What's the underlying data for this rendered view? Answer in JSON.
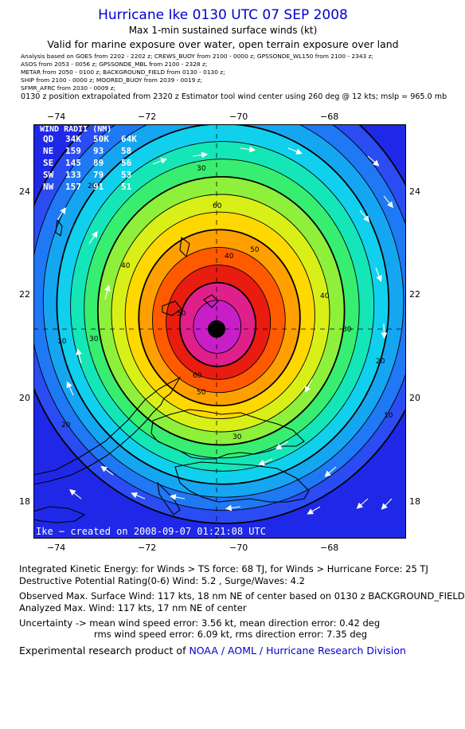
{
  "header": {
    "title": "Hurricane Ike 0130 UTC 07 SEP 2008",
    "subtitle1": "Max 1-min sustained surface winds (kt)",
    "subtitle2": "Valid for marine exposure over water, open terrain exposure over land"
  },
  "sources": [
    "Analysis based on  GOES from  2202 - 2202 z;  CREWS_BUOY from  2100 - 0000 z;  GPSSONDE_WL150 from  2100 - 2343 z;",
    "ASOS from  2053 - 0056 z;  GPSSONDE_MBL from  2100 - 2328 z;",
    "METAR from  2050 - 0100 z;  BACKGROUND_FIELD from  0130 - 0130 z;",
    "SHIP from  2100 - 0000 z;  MOORED_BUOY from  2039 - 0019 z;",
    "SFMR_AFRC from  2030 - 0009 z;"
  ],
  "position_note": "0130 z position extrapolated from 2320 z Estimator tool wind center using 260 deg @ 12 kts; mslp = 965.0 mb",
  "map": {
    "lon_ticks": [
      "−74",
      "−72",
      "−70",
      "−68"
    ],
    "lat_ticks": [
      "24",
      "22",
      "20",
      "18"
    ],
    "wind_radii": {
      "title": "WIND RADII (NM)",
      "header": [
        "QD",
        "34K",
        "50K",
        "64K"
      ],
      "rows": [
        [
          "NE",
          "159",
          "93",
          "58"
        ],
        [
          "SE",
          "145",
          "89",
          "56"
        ],
        [
          "SW",
          "133",
          "79",
          "53"
        ],
        [
          "NW",
          "157",
          "91",
          "51"
        ]
      ]
    },
    "contour_labels": [
      "10",
      "20",
      "30",
      "40",
      "50",
      "60",
      "30",
      "40",
      "50",
      "30",
      "20",
      "10",
      "20",
      "30",
      "40",
      "50",
      "60"
    ],
    "footer": "Ike − created on 2008-09-07 01:21:08 UTC",
    "colors": {
      "outer": "#1f28e6",
      "levels": [
        "#2a4cf2",
        "#1f78f4",
        "#15a6f2",
        "#10d0ee",
        "#14e6b8",
        "#38ee70",
        "#8ef03a",
        "#d8f018",
        "#ffd800",
        "#ffa000",
        "#ff5a00",
        "#e81c10",
        "#e0208a",
        "#c81ec8"
      ]
    }
  },
  "info": {
    "ike_line": "Integrated Kinetic Energy:  for Winds > TS force: 68 TJ,  for Winds > Hurricane Force: 25 TJ",
    "dpr_line": "Destructive Potential Rating(0-6)   Wind: 5.2 , Surge/Waves: 4.2",
    "obs_line": "Observed Max. Surface Wind: 117 kts, 18 nm NE of center based on 0130 z BACKGROUND_FIELD",
    "analyzed_line": "Analyzed Max. Wind: 117 kts, 17 nm NE of center",
    "uncert_line1": "Uncertainty -> mean wind speed error: 3.56 kt,   mean direction error: 0.42 deg",
    "uncert_line2": "rms wind speed error: 6.09 kt,   rms direction error: 7.35 deg",
    "credit_prefix": "Experimental research product of ",
    "credit_org": "NOAA / AOML / Hurricane Research Division"
  }
}
